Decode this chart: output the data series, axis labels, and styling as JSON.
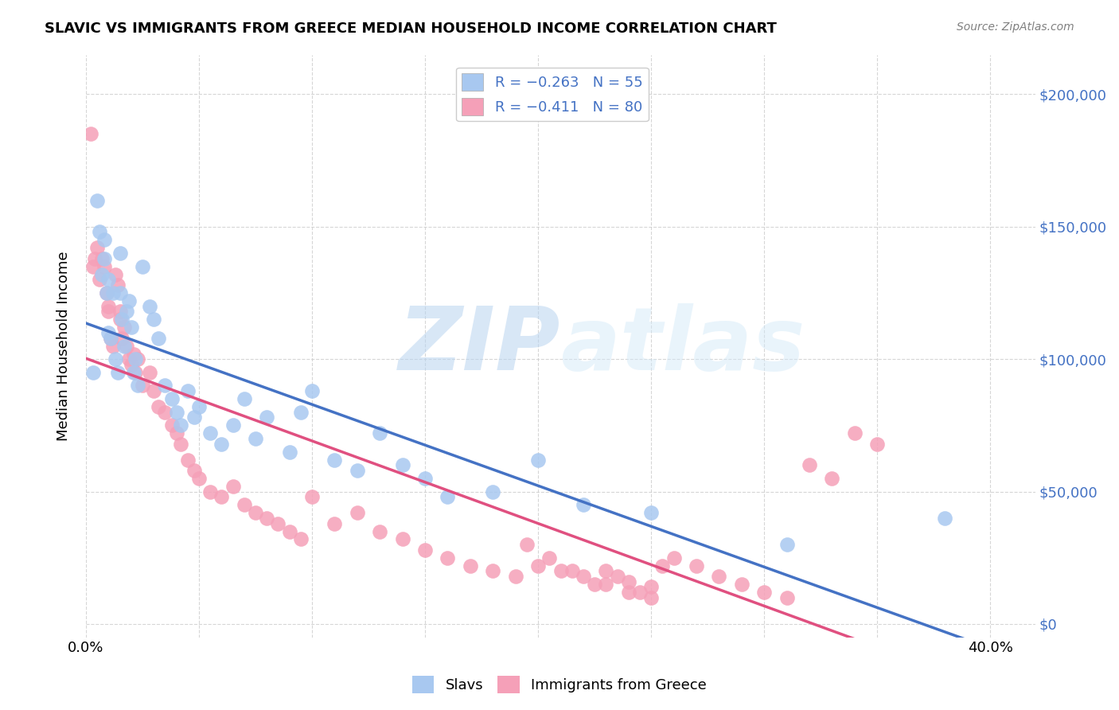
{
  "title": "SLAVIC VS IMMIGRANTS FROM GREECE MEDIAN HOUSEHOLD INCOME CORRELATION CHART",
  "source": "Source: ZipAtlas.com",
  "xlabel_ticks": [
    0.0,
    0.05,
    0.1,
    0.15,
    0.2,
    0.25,
    0.3,
    0.35,
    0.4
  ],
  "ylabel_ticks": [
    0,
    50000,
    100000,
    150000,
    200000
  ],
  "ylabel_labels": [
    "$0",
    "$50,000",
    "$100,000",
    "$150,000",
    "$200,000"
  ],
  "xlim": [
    0,
    0.42
  ],
  "ylim": [
    -5000,
    215000
  ],
  "legend_r1": "R = −0.263",
  "legend_n1": "N = 55",
  "legend_r2": "R = −0.411",
  "legend_n2": "N = 80",
  "slavs_color": "#a8c8f0",
  "greece_color": "#f5a0b8",
  "slavs_line_color": "#4472c4",
  "greece_line_color": "#e05080",
  "watermark_zip": "ZIP",
  "watermark_atlas": "atlas",
  "slavs_x": [
    0.003,
    0.005,
    0.006,
    0.007,
    0.008,
    0.008,
    0.009,
    0.01,
    0.01,
    0.011,
    0.012,
    0.013,
    0.014,
    0.015,
    0.015,
    0.016,
    0.017,
    0.018,
    0.019,
    0.02,
    0.021,
    0.022,
    0.023,
    0.025,
    0.028,
    0.03,
    0.032,
    0.035,
    0.038,
    0.04,
    0.042,
    0.045,
    0.048,
    0.05,
    0.055,
    0.06,
    0.065,
    0.07,
    0.075,
    0.08,
    0.09,
    0.095,
    0.1,
    0.11,
    0.12,
    0.13,
    0.14,
    0.15,
    0.16,
    0.18,
    0.2,
    0.22,
    0.25,
    0.31,
    0.38
  ],
  "slavs_y": [
    95000,
    160000,
    148000,
    132000,
    145000,
    138000,
    125000,
    130000,
    110000,
    108000,
    125000,
    100000,
    95000,
    140000,
    125000,
    115000,
    105000,
    118000,
    122000,
    112000,
    95000,
    100000,
    90000,
    135000,
    120000,
    115000,
    108000,
    90000,
    85000,
    80000,
    75000,
    88000,
    78000,
    82000,
    72000,
    68000,
    75000,
    85000,
    70000,
    78000,
    65000,
    80000,
    88000,
    62000,
    58000,
    72000,
    60000,
    55000,
    48000,
    50000,
    62000,
    45000,
    42000,
    30000,
    40000
  ],
  "greece_x": [
    0.002,
    0.003,
    0.004,
    0.005,
    0.006,
    0.007,
    0.008,
    0.009,
    0.01,
    0.01,
    0.011,
    0.012,
    0.013,
    0.014,
    0.015,
    0.015,
    0.016,
    0.017,
    0.018,
    0.019,
    0.02,
    0.021,
    0.022,
    0.023,
    0.025,
    0.028,
    0.03,
    0.032,
    0.035,
    0.038,
    0.04,
    0.042,
    0.045,
    0.048,
    0.05,
    0.055,
    0.06,
    0.065,
    0.07,
    0.075,
    0.08,
    0.085,
    0.09,
    0.095,
    0.1,
    0.11,
    0.12,
    0.13,
    0.14,
    0.15,
    0.16,
    0.17,
    0.18,
    0.19,
    0.2,
    0.21,
    0.22,
    0.23,
    0.24,
    0.25,
    0.26,
    0.27,
    0.28,
    0.29,
    0.3,
    0.31,
    0.32,
    0.33,
    0.34,
    0.35,
    0.195,
    0.205,
    0.215,
    0.225,
    0.235,
    0.245,
    0.255,
    0.23,
    0.24,
    0.25
  ],
  "greece_y": [
    185000,
    135000,
    138000,
    142000,
    130000,
    138000,
    135000,
    125000,
    120000,
    118000,
    108000,
    105000,
    132000,
    128000,
    118000,
    115000,
    108000,
    112000,
    105000,
    100000,
    98000,
    102000,
    95000,
    100000,
    90000,
    95000,
    88000,
    82000,
    80000,
    75000,
    72000,
    68000,
    62000,
    58000,
    55000,
    50000,
    48000,
    52000,
    45000,
    42000,
    40000,
    38000,
    35000,
    32000,
    48000,
    38000,
    42000,
    35000,
    32000,
    28000,
    25000,
    22000,
    20000,
    18000,
    22000,
    20000,
    18000,
    15000,
    12000,
    10000,
    25000,
    22000,
    18000,
    15000,
    12000,
    10000,
    60000,
    55000,
    72000,
    68000,
    30000,
    25000,
    20000,
    15000,
    18000,
    12000,
    22000,
    20000,
    16000,
    14000
  ]
}
